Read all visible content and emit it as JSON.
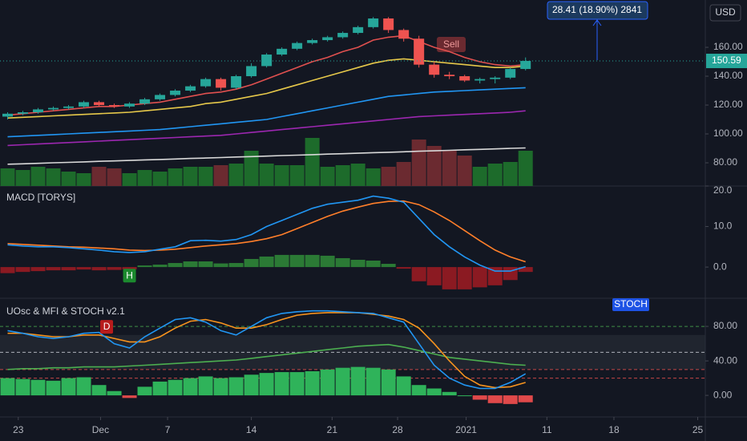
{
  "chart_data": [
    {
      "type": "candlestick",
      "currency": "USD",
      "signal": "Sell",
      "measure": "28.41 (18.90%) 2841",
      "open": [
        112,
        114,
        115,
        117,
        118,
        119,
        122,
        120,
        119,
        121,
        124,
        127,
        130,
        133,
        138,
        132,
        140,
        147,
        155,
        159,
        163,
        165,
        167,
        170,
        174,
        180,
        172,
        166,
        148,
        141,
        140,
        137,
        138,
        139,
        145
      ],
      "high": [
        115,
        116,
        118,
        119,
        120,
        123,
        123,
        121,
        122,
        125,
        128,
        131,
        134,
        139,
        139,
        141,
        149,
        156,
        160,
        164,
        166,
        168,
        171,
        175,
        181,
        181,
        173,
        168,
        150,
        143,
        141,
        139,
        140,
        146,
        153
      ],
      "low": [
        110,
        113,
        114,
        116,
        117,
        118,
        119,
        118,
        118,
        120,
        123,
        126,
        129,
        132,
        130,
        131,
        139,
        146,
        154,
        158,
        162,
        164,
        166,
        169,
        173,
        170,
        164,
        146,
        139,
        138,
        136,
        135,
        135,
        138,
        144
      ],
      "close": [
        114,
        115,
        117,
        118,
        119,
        122,
        120,
        119,
        121,
        124,
        127,
        130,
        133,
        138,
        132,
        140,
        147,
        155,
        159,
        163,
        165,
        167,
        170,
        174,
        180,
        172,
        166,
        148,
        141,
        140,
        137,
        138,
        139,
        145,
        150.59
      ],
      "volume": [
        22,
        20,
        24,
        22,
        18,
        16,
        24,
        22,
        16,
        20,
        18,
        22,
        24,
        24,
        26,
        28,
        44,
        28,
        26,
        26,
        60,
        24,
        26,
        28,
        22,
        24,
        30,
        58,
        50,
        44,
        38,
        24,
        28,
        30,
        44
      ],
      "up_color": "#26a69a",
      "down_color": "#ef5350",
      "volume_colors": {
        "up": "#1d6b2b",
        "down": "#6b2a30"
      },
      "series": [
        {
          "color": "#d9d9d9",
          "values": [
            79,
            79.3,
            79.6,
            80,
            80.3,
            80.6,
            81,
            81.3,
            81.6,
            82,
            82.3,
            82.6,
            83,
            83.3,
            83.6,
            84,
            84.3,
            84.6,
            85,
            85.3,
            85.6,
            86,
            86.3,
            86.6,
            87,
            87.3,
            87.6,
            88,
            88.3,
            88.6,
            89,
            89.3,
            89.6,
            90,
            90.3
          ]
        },
        {
          "color": "#9c27b0",
          "values": [
            92,
            92.5,
            93,
            93.5,
            94,
            94.5,
            95,
            95.5,
            96,
            96.5,
            97,
            97.5,
            98,
            98.5,
            99,
            100,
            101,
            102,
            103,
            104,
            105,
            106,
            107,
            108,
            109,
            110,
            111,
            112,
            112.5,
            113,
            113.5,
            114,
            114.5,
            115,
            116
          ]
        },
        {
          "color": "#2196f3",
          "values": [
            98,
            98.5,
            99,
            99.5,
            100,
            100.5,
            101,
            101.5,
            102,
            102.5,
            103,
            104,
            105,
            106,
            107,
            108,
            109,
            110,
            112,
            114,
            116,
            118,
            120,
            122,
            124,
            126,
            127,
            128,
            129,
            129.5,
            130,
            130.5,
            131,
            131.5,
            132
          ]
        },
        {
          "color": "#e6c84a",
          "values": [
            111,
            111.5,
            112,
            112.5,
            113,
            113.5,
            114,
            114.5,
            115,
            116,
            117,
            118,
            119,
            121,
            122,
            124,
            126,
            128,
            131,
            134,
            137,
            140,
            143,
            146,
            149,
            151,
            152,
            151,
            150,
            149,
            148,
            147,
            146,
            146,
            147
          ]
        },
        {
          "color": "#e0504f",
          "values": [
            113,
            114,
            115,
            116,
            117,
            118,
            119,
            119,
            120,
            121,
            122,
            124,
            126,
            128,
            129,
            131,
            134,
            138,
            142,
            146,
            150,
            153,
            157,
            160,
            165,
            167,
            168,
            164,
            160,
            157,
            153,
            150,
            148,
            147,
            148
          ]
        }
      ],
      "ylim": [
        63.9,
        192.8
      ],
      "yticks": [
        {
          "value": 80,
          "label": "80.00"
        },
        {
          "value": 100,
          "label": "100.00"
        },
        {
          "value": 120,
          "label": "120.00"
        },
        {
          "value": 140,
          "label": "140.00"
        },
        {
          "value": 160,
          "label": "160.00"
        }
      ]
    },
    {
      "type": "line",
      "title": "MACD [TORYS]",
      "histogram": [
        -1.5,
        -1.2,
        -1,
        -0.8,
        -0.8,
        -0.6,
        -0.8,
        -0.7,
        -0.6,
        0.4,
        0.6,
        1,
        1.4,
        1.4,
        0.9,
        1,
        2,
        2.6,
        3,
        3,
        3,
        2.8,
        2.2,
        1.8,
        1.6,
        0.8,
        -0.4,
        -3.5,
        -4.5,
        -5.5,
        -5.5,
        -5,
        -4.5,
        -3.2,
        -1.2
      ],
      "hist_colors": {
        "up": "#2b7a35",
        "down": "#8b1a22"
      },
      "series": [
        {
          "color": "#ff7f2a",
          "values": [
            5.8,
            5.6,
            5.4,
            5.2,
            5,
            4.9,
            4.7,
            4.5,
            4.2,
            4.1,
            4.2,
            4.4,
            4.8,
            5.2,
            5.5,
            5.8,
            6.3,
            7,
            8,
            9.5,
            11,
            12.5,
            13.8,
            14.8,
            15.7,
            16.2,
            16.3,
            15.4,
            13.6,
            11.5,
            9,
            6.5,
            4.2,
            2.5,
            1.3
          ]
        },
        {
          "color": "#2196f3",
          "values": [
            5.5,
            5.2,
            5,
            5,
            4.8,
            4.5,
            4.2,
            3.8,
            3.6,
            3.8,
            4.4,
            5,
            6.5,
            6.6,
            6.4,
            6.8,
            8,
            10,
            11.5,
            13,
            14.5,
            15.5,
            16,
            16.5,
            17.5,
            17,
            16,
            12,
            8,
            5,
            2.5,
            0.5,
            -1,
            -1,
            0.1
          ]
        }
      ],
      "markers": [
        {
          "label": "H",
          "x": 8,
          "color": "#1b8a2e"
        }
      ],
      "ylim": [
        -7.7,
        20
      ],
      "yticks": [
        {
          "value": 0,
          "label": "0.0"
        },
        {
          "value": 10,
          "label": "10.0"
        },
        {
          "value": 20,
          "label": "20.0"
        }
      ]
    },
    {
      "type": "line",
      "title": "UOsc & MFI & STOCH v2.1",
      "tag": "STOCH",
      "histogram": [
        20,
        19,
        18,
        17,
        20,
        21,
        12,
        5,
        -3,
        10,
        16,
        18,
        20,
        22,
        20,
        21,
        24,
        26,
        27,
        27,
        28,
        30,
        32,
        33,
        32,
        30,
        22,
        12,
        8,
        4,
        0,
        -5,
        -9,
        -10,
        -8
      ],
      "hist_colors": {
        "up": "#2fb35a",
        "down": "#e0494a"
      },
      "band": [
        30,
        70
      ],
      "levels": [
        {
          "value": 80,
          "color": "#4caf50"
        },
        {
          "value": 50,
          "color": "#d1d4dc"
        },
        {
          "value": 30,
          "color": "#ef5350"
        },
        {
          "value": 20,
          "color": "#ef5350"
        }
      ],
      "series": [
        {
          "color": "#4caf50",
          "values": [
            30,
            31,
            31,
            32,
            32,
            33,
            33,
            33,
            34,
            35,
            36,
            37,
            38,
            39,
            40,
            41,
            43,
            45,
            47,
            49,
            51,
            53,
            55,
            57,
            58,
            59,
            56,
            52,
            48,
            44,
            42,
            40,
            38,
            36,
            35
          ]
        },
        {
          "color": "#f7931e",
          "values": [
            72,
            72,
            70,
            68,
            68,
            70,
            70,
            66,
            62,
            62,
            68,
            78,
            86,
            88,
            84,
            78,
            78,
            82,
            88,
            93,
            95,
            96,
            96,
            96,
            94,
            92,
            88,
            78,
            60,
            40,
            22,
            12,
            9,
            10,
            15
          ]
        },
        {
          "color": "#2196f3",
          "values": [
            75,
            72,
            68,
            66,
            68,
            72,
            73,
            60,
            55,
            68,
            78,
            88,
            90,
            85,
            75,
            70,
            80,
            90,
            95,
            97,
            98,
            98,
            97,
            96,
            95,
            90,
            85,
            60,
            35,
            20,
            12,
            8,
            8,
            15,
            25
          ]
        }
      ],
      "markers": [
        {
          "label": "D",
          "x": 6.5,
          "color": "#b71c1c"
        }
      ],
      "ylim": [
        -25,
        112.6
      ],
      "yticks": [
        {
          "value": 0,
          "label": "0.00"
        },
        {
          "value": 40,
          "label": "40.00"
        },
        {
          "value": 80,
          "label": "80.00"
        }
      ],
      "xlim": [
        -0.5,
        45.8
      ],
      "xticks": [
        {
          "value": 0.7,
          "label": "23"
        },
        {
          "value": 6.1,
          "label": "Dec"
        },
        {
          "value": 10.5,
          "label": "7"
        },
        {
          "value": 16,
          "label": "14"
        },
        {
          "value": 21.3,
          "label": "21"
        },
        {
          "value": 25.6,
          "label": "28"
        },
        {
          "value": 30.1,
          "label": "2021"
        },
        {
          "value": 35.4,
          "label": "11"
        },
        {
          "value": 39.8,
          "label": "18"
        },
        {
          "value": 45.3,
          "label": "25"
        }
      ]
    }
  ]
}
